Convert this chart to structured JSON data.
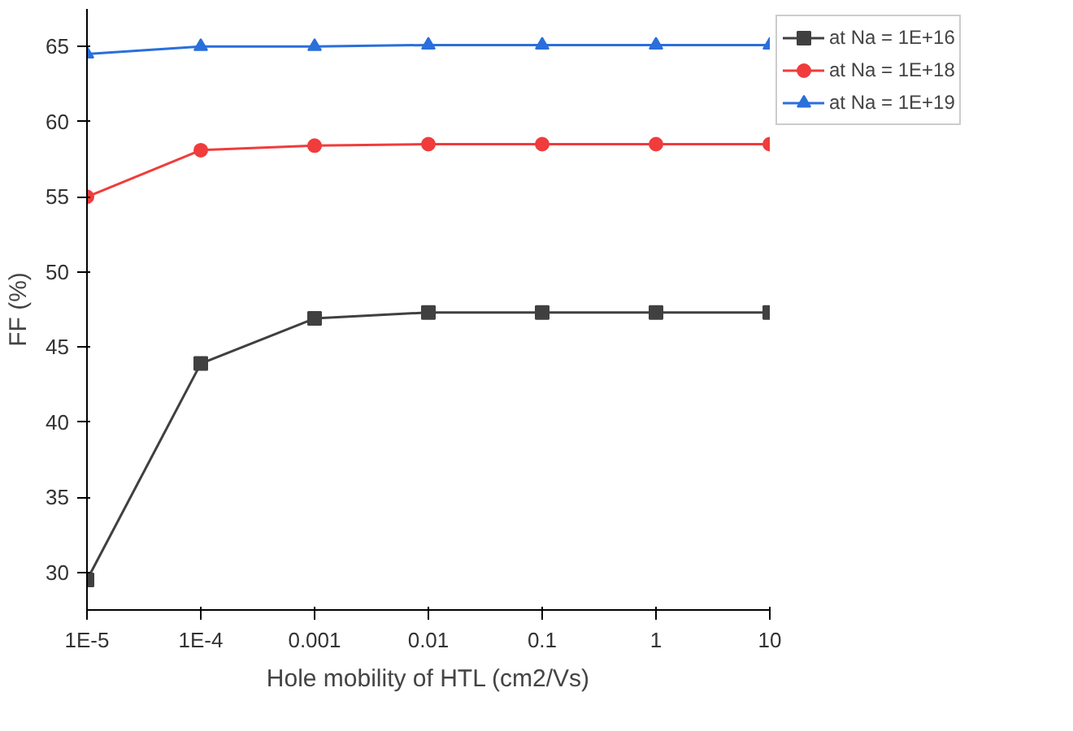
{
  "chart_data": {
    "type": "line",
    "xlabel": "Hole mobility of HTL (cm2/Vs)",
    "ylabel": "FF (%)",
    "x": [
      1e-05,
      0.0001,
      0.001,
      0.01,
      0.1,
      1,
      10
    ],
    "series": [
      {
        "name": "at Na = 1E+16",
        "color": "#404040",
        "marker": "square",
        "values": [
          29.5,
          43.9,
          46.9,
          47.3,
          47.3,
          47.3,
          47.3
        ]
      },
      {
        "name": "at Na = 1E+18",
        "color": "#f03c3c",
        "marker": "circle",
        "values": [
          55.0,
          58.1,
          58.4,
          58.5,
          58.5,
          58.5,
          58.5
        ]
      },
      {
        "name": "at Na = 1E+19",
        "color": "#2a6fdb",
        "marker": "triangle",
        "values": [
          64.5,
          65.0,
          65.0,
          65.1,
          65.1,
          65.1,
          65.1
        ]
      }
    ],
    "log": "x",
    "xlim": [
      1e-05,
      10
    ],
    "xticks": [
      {
        "value": 1e-05,
        "label": "1E-5"
      },
      {
        "value": 0.0001,
        "label": "1E-4"
      },
      0.001,
      0.01,
      0.1,
      1,
      10
    ],
    "ylim": [
      27.5,
      67.5
    ],
    "yticks": [
      30,
      35,
      40,
      45,
      50,
      55,
      60,
      65
    ],
    "grid": false,
    "legend": "top right",
    "line_style": "solid"
  }
}
